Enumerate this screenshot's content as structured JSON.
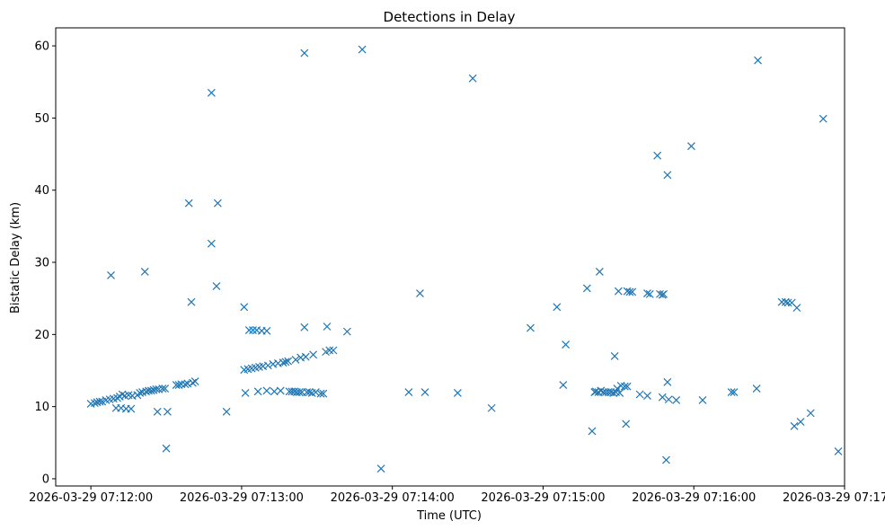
{
  "chart_data": {
    "type": "scatter",
    "title": "Detections in Delay",
    "xlabel": "Time (UTC)",
    "ylabel": "Bistatic Delay (km)",
    "marker": "x",
    "color": "#1f77b4",
    "x_unit": "seconds after 2026-03-29 07:12:00",
    "xlim": [
      -14,
      300
    ],
    "ylim": [
      -1,
      62.5
    ],
    "xticks": [
      0,
      60,
      120,
      180,
      240,
      300
    ],
    "xtick_labels": [
      "2026-03-29 07:12:00",
      "2026-03-29 07:13:00",
      "2026-03-29 07:14:00",
      "2026-03-29 07:15:00",
      "2026-03-29 07:16:00",
      "2026-03-29 07:17:00"
    ],
    "yticks": [
      0,
      10,
      20,
      30,
      40,
      50,
      60
    ],
    "ytick_labels": [
      "0",
      "10",
      "20",
      "30",
      "40",
      "50",
      "60"
    ],
    "grid": false,
    "points": [
      [
        0.0,
        10.4
      ],
      [
        1.5,
        10.5
      ],
      [
        2.5,
        10.6
      ],
      [
        3.5,
        10.7
      ],
      [
        4.5,
        10.7
      ],
      [
        6.0,
        10.9
      ],
      [
        7.5,
        11.0
      ],
      [
        8.0,
        28.2
      ],
      [
        9.0,
        11.1
      ],
      [
        10.0,
        9.8
      ],
      [
        10.5,
        11.2
      ],
      [
        11.5,
        11.4
      ],
      [
        12.0,
        9.8
      ],
      [
        12.5,
        11.7
      ],
      [
        13.5,
        11.5
      ],
      [
        14.0,
        9.7
      ],
      [
        15.0,
        11.6
      ],
      [
        16.0,
        9.7
      ],
      [
        16.5,
        11.5
      ],
      [
        18.5,
        11.6
      ],
      [
        19.5,
        11.9
      ],
      [
        20.5,
        12.0
      ],
      [
        21.5,
        28.7
      ],
      [
        22.0,
        12.1
      ],
      [
        23.0,
        12.2
      ],
      [
        24.0,
        12.2
      ],
      [
        25.0,
        12.3
      ],
      [
        26.0,
        12.4
      ],
      [
        26.5,
        9.3
      ],
      [
        27.0,
        12.4
      ],
      [
        28.5,
        12.5
      ],
      [
        29.5,
        12.5
      ],
      [
        30.0,
        4.2
      ],
      [
        30.5,
        9.3
      ],
      [
        34.0,
        13.0
      ],
      [
        35.0,
        13.0
      ],
      [
        36.0,
        13.1
      ],
      [
        37.5,
        13.1
      ],
      [
        38.5,
        13.2
      ],
      [
        39.0,
        38.2
      ],
      [
        40.0,
        24.5
      ],
      [
        40.5,
        13.3
      ],
      [
        41.5,
        13.5
      ],
      [
        48.0,
        53.5
      ],
      [
        48.0,
        32.6
      ],
      [
        50.0,
        26.7
      ],
      [
        50.5,
        38.2
      ],
      [
        54.0,
        9.3
      ],
      [
        61.0,
        23.8
      ],
      [
        61.0,
        15.1
      ],
      [
        61.5,
        11.9
      ],
      [
        62.5,
        15.2
      ],
      [
        63.0,
        20.6
      ],
      [
        64.0,
        15.3
      ],
      [
        64.5,
        20.6
      ],
      [
        65.5,
        15.4
      ],
      [
        66.0,
        20.6
      ],
      [
        66.5,
        12.1
      ],
      [
        67.0,
        15.5
      ],
      [
        68.0,
        20.5
      ],
      [
        68.5,
        15.6
      ],
      [
        70.0,
        12.2
      ],
      [
        70.0,
        20.5
      ],
      [
        70.5,
        15.7
      ],
      [
        72.5,
        15.9
      ],
      [
        73.0,
        12.1
      ],
      [
        74.5,
        16.0
      ],
      [
        75.5,
        12.2
      ],
      [
        76.5,
        16.1
      ],
      [
        77.5,
        16.2
      ],
      [
        78.5,
        16.3
      ],
      [
        79.0,
        12.1
      ],
      [
        80.0,
        12.1
      ],
      [
        81.0,
        12.1
      ],
      [
        81.5,
        16.5
      ],
      [
        82.0,
        12.0
      ],
      [
        83.0,
        12.0
      ],
      [
        83.5,
        16.8
      ],
      [
        84.0,
        12.0
      ],
      [
        85.0,
        21.0
      ],
      [
        85.0,
        59.0
      ],
      [
        85.5,
        16.9
      ],
      [
        86.0,
        12.0
      ],
      [
        87.0,
        12.0
      ],
      [
        88.0,
        11.9
      ],
      [
        88.5,
        17.2
      ],
      [
        89.5,
        12.0
      ],
      [
        91.5,
        11.8
      ],
      [
        92.5,
        11.8
      ],
      [
        93.5,
        17.6
      ],
      [
        94.0,
        21.1
      ],
      [
        95.0,
        17.8
      ],
      [
        96.5,
        17.8
      ],
      [
        102.0,
        20.4
      ],
      [
        108.0,
        59.5
      ],
      [
        115.5,
        1.4
      ],
      [
        126.5,
        12.0
      ],
      [
        131.0,
        25.7
      ],
      [
        133.0,
        12.0
      ],
      [
        146.0,
        11.9
      ],
      [
        152.0,
        55.5
      ],
      [
        159.5,
        9.8
      ],
      [
        175.0,
        20.9
      ],
      [
        185.5,
        23.8
      ],
      [
        188.0,
        13.0
      ],
      [
        189.0,
        18.6
      ],
      [
        197.5,
        26.4
      ],
      [
        199.5,
        6.6
      ],
      [
        200.5,
        12.0
      ],
      [
        201.0,
        12.1
      ],
      [
        202.0,
        12.0
      ],
      [
        202.5,
        28.7
      ],
      [
        203.0,
        12.2
      ],
      [
        204.0,
        12.0
      ],
      [
        205.0,
        12.0
      ],
      [
        206.0,
        12.0
      ],
      [
        207.0,
        12.0
      ],
      [
        208.0,
        11.9
      ],
      [
        208.5,
        17.0
      ],
      [
        209.0,
        12.0
      ],
      [
        209.5,
        12.5
      ],
      [
        210.0,
        26.0
      ],
      [
        210.5,
        11.9
      ],
      [
        211.0,
        12.9
      ],
      [
        212.5,
        12.8
      ],
      [
        213.0,
        7.6
      ],
      [
        213.5,
        12.8
      ],
      [
        213.5,
        26.0
      ],
      [
        214.5,
        25.9
      ],
      [
        215.5,
        25.9
      ],
      [
        218.5,
        11.7
      ],
      [
        221.5,
        11.5
      ],
      [
        221.5,
        25.7
      ],
      [
        222.5,
        25.6
      ],
      [
        225.5,
        44.8
      ],
      [
        226.5,
        25.6
      ],
      [
        227.5,
        25.5
      ],
      [
        227.5,
        11.3
      ],
      [
        228.0,
        25.6
      ],
      [
        229.0,
        2.6
      ],
      [
        229.5,
        13.4
      ],
      [
        229.5,
        42.1
      ],
      [
        230.0,
        11.0
      ],
      [
        233.0,
        10.9
      ],
      [
        239.0,
        46.1
      ],
      [
        243.5,
        10.9
      ],
      [
        255.0,
        12.0
      ],
      [
        256.0,
        12.0
      ],
      [
        265.0,
        12.5
      ],
      [
        265.5,
        58.0
      ],
      [
        275.0,
        24.5
      ],
      [
        276.5,
        24.5
      ],
      [
        277.5,
        24.4
      ],
      [
        279.0,
        24.4
      ],
      [
        280.0,
        7.3
      ],
      [
        281.0,
        23.7
      ],
      [
        282.5,
        7.9
      ],
      [
        286.5,
        9.1
      ],
      [
        291.5,
        49.9
      ],
      [
        297.5,
        3.8
      ]
    ]
  }
}
